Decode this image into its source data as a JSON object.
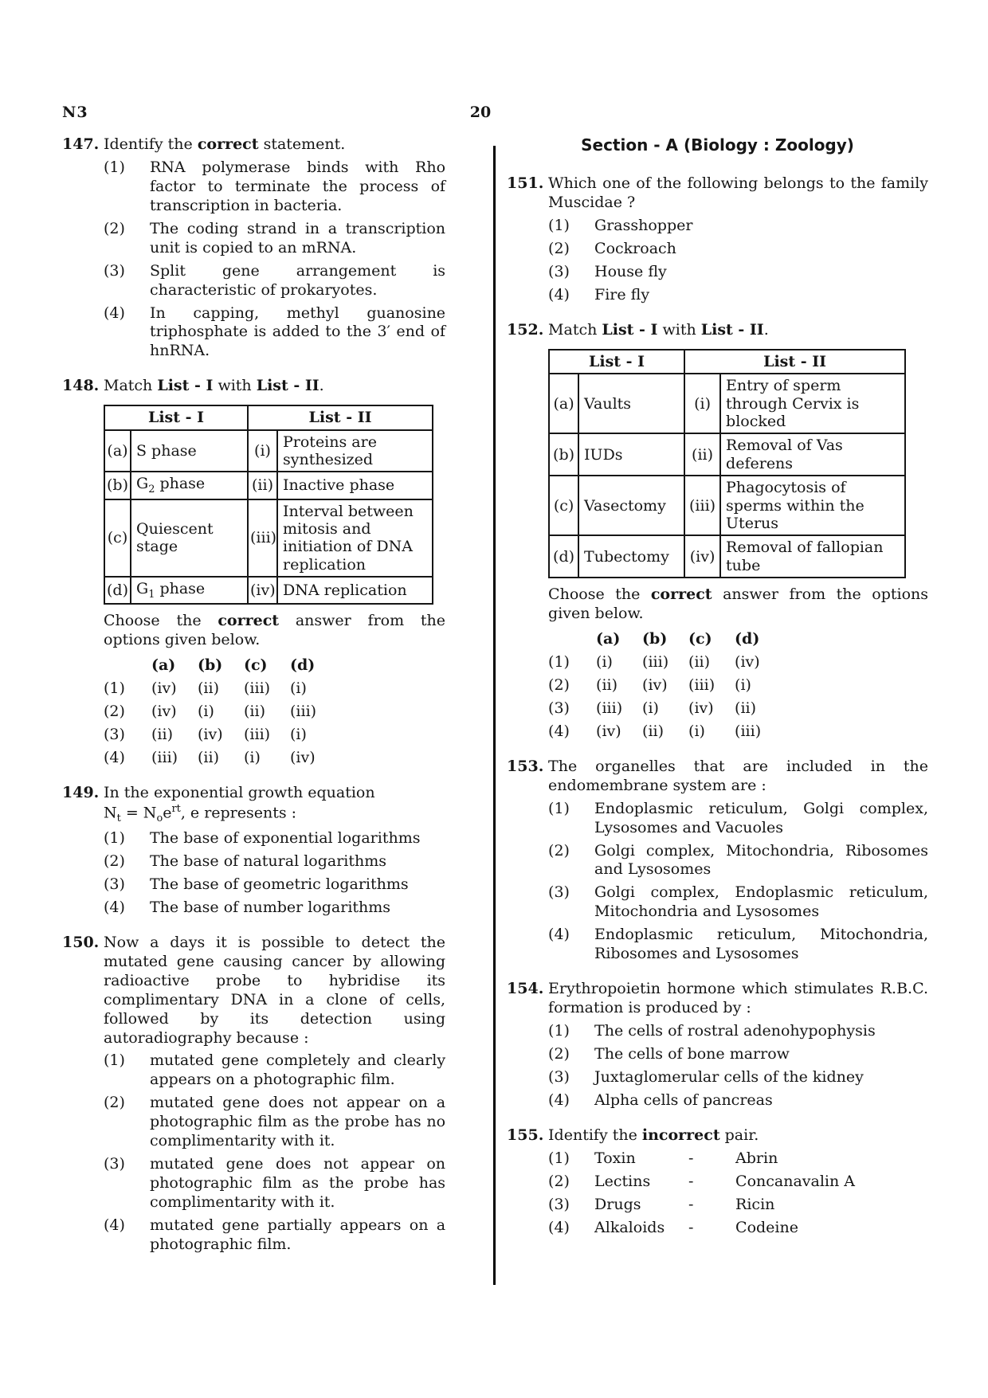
{
  "page": {
    "code": "N3",
    "number": "20"
  },
  "columns": {
    "left": {
      "questions": [
        {
          "id": "147",
          "number": "147.",
          "stem_lines": [
            [
              {
                "t": "Identify the "
              },
              {
                "t": "correct",
                "b": true
              },
              {
                "t": " statement."
              }
            ]
          ],
          "options": [
            {
              "label": "(1)",
              "text": [
                {
                  "t": "RNA polymerase binds with Rho factor to terminate the process of transcription in bacteria."
                }
              ]
            },
            {
              "label": "(2)",
              "text": [
                {
                  "t": "The coding strand in a transcription unit is copied to an mRNA."
                }
              ]
            },
            {
              "label": "(3)",
              "text": [
                {
                  "t": "Split gene arrangement is characteristic of prokaryotes."
                }
              ]
            },
            {
              "label": "(4)",
              "text": [
                {
                  "t": "In capping, methyl guanosine triphosphate is added to the 3′ end of hnRNA."
                }
              ]
            }
          ]
        },
        {
          "id": "148",
          "number": "148.",
          "stem_lines": [
            [
              {
                "t": "Match "
              },
              {
                "t": "List - I",
                "b": true
              },
              {
                "t": " with "
              },
              {
                "t": "List - II",
                "b": true
              },
              {
                "t": "."
              }
            ]
          ],
          "match_table": {
            "header_left": "List - I",
            "header_right": "List - II",
            "rows": [
              {
                "l_label": "(a)",
                "l": [
                  {
                    "t": "S phase"
                  }
                ],
                "r_label": "(i)",
                "r": [
                  {
                    "t": "Proteins are synthesized"
                  }
                ]
              },
              {
                "l_label": "(b)",
                "l": [
                  {
                    "t": "G"
                  },
                  {
                    "t": "2",
                    "sub": true
                  },
                  {
                    "t": " phase"
                  }
                ],
                "r_label": "(ii)",
                "r": [
                  {
                    "t": "Inactive phase"
                  }
                ]
              },
              {
                "l_label": "(c)",
                "l": [
                  {
                    "t": "Quiescent stage"
                  }
                ],
                "r_label": "(iii)",
                "r": [
                  {
                    "t": "Interval between mitosis and initiation of DNA replication"
                  }
                ]
              },
              {
                "l_label": "(d)",
                "l": [
                  {
                    "t": "G"
                  },
                  {
                    "t": "1",
                    "sub": true
                  },
                  {
                    "t": " phase"
                  }
                ],
                "r_label": "(iv)",
                "r": [
                  {
                    "t": "DNA replication"
                  }
                ]
              }
            ]
          },
          "choose": [
            {
              "t": "Choose the "
            },
            {
              "t": "correct",
              "b": true
            },
            {
              "t": " answer from the options given below."
            }
          ],
          "matrix": {
            "cols": [
              "(a)",
              "(b)",
              "(c)",
              "(d)"
            ],
            "rows": [
              {
                "label": "(1)",
                "cells": [
                  "(iv)",
                  "(ii)",
                  "(iii)",
                  "(i)"
                ]
              },
              {
                "label": "(2)",
                "cells": [
                  "(iv)",
                  "(i)",
                  "(ii)",
                  "(iii)"
                ]
              },
              {
                "label": "(3)",
                "cells": [
                  "(ii)",
                  "(iv)",
                  "(iii)",
                  "(i)"
                ]
              },
              {
                "label": "(4)",
                "cells": [
                  "(iii)",
                  "(ii)",
                  "(i)",
                  "(iv)"
                ]
              }
            ]
          }
        },
        {
          "id": "149",
          "number": "149.",
          "stem_lines": [
            [
              {
                "t": "In the exponential growth equation"
              }
            ],
            [
              {
                "t": "N"
              },
              {
                "t": "t",
                "sub": true
              },
              {
                "t": " = N"
              },
              {
                "t": "o",
                "sub": true
              },
              {
                "t": "e"
              },
              {
                "t": "rt",
                "sup": true
              },
              {
                "t": ", e represents :"
              }
            ]
          ],
          "options": [
            {
              "label": "(1)",
              "text": [
                {
                  "t": "The base of exponential logarithms"
                }
              ]
            },
            {
              "label": "(2)",
              "text": [
                {
                  "t": "The base of natural logarithms"
                }
              ]
            },
            {
              "label": "(3)",
              "text": [
                {
                  "t": "The base of geometric logarithms"
                }
              ]
            },
            {
              "label": "(4)",
              "text": [
                {
                  "t": "The base of number logarithms"
                }
              ]
            }
          ]
        },
        {
          "id": "150",
          "number": "150.",
          "stem_lines": [
            [
              {
                "t": "Now a days it is possible to detect the mutated gene causing cancer by allowing radioactive probe to hybridise its complimentary DNA in a clone of cells, followed by its detection using autoradiography because :"
              }
            ]
          ],
          "options": [
            {
              "label": "(1)",
              "text": [
                {
                  "t": "mutated gene completely and clearly appears on a photographic film."
                }
              ]
            },
            {
              "label": "(2)",
              "text": [
                {
                  "t": "mutated gene does not appear on a photographic film as the probe has no complimentarity with it."
                }
              ]
            },
            {
              "label": "(3)",
              "text": [
                {
                  "t": "mutated gene does not appear on photographic film as the probe has complimentarity with it."
                }
              ]
            },
            {
              "label": "(4)",
              "text": [
                {
                  "t": "mutated gene partially appears on a photographic film."
                }
              ]
            }
          ]
        }
      ]
    },
    "right": {
      "section_title": "Section - A (Biology : Zoology)",
      "questions": [
        {
          "id": "151",
          "number": "151.",
          "stem_lines": [
            [
              {
                "t": "Which one of the following belongs to the family Muscidae ?"
              }
            ]
          ],
          "options": [
            {
              "label": "(1)",
              "text": [
                {
                  "t": "Grasshopper"
                }
              ]
            },
            {
              "label": "(2)",
              "text": [
                {
                  "t": "Cockroach"
                }
              ]
            },
            {
              "label": "(3)",
              "text": [
                {
                  "t": "House fly"
                }
              ]
            },
            {
              "label": "(4)",
              "text": [
                {
                  "t": "Fire fly"
                }
              ]
            }
          ]
        },
        {
          "id": "152",
          "number": "152.",
          "stem_lines": [
            [
              {
                "t": "Match "
              },
              {
                "t": "List - I",
                "b": true
              },
              {
                "t": " with "
              },
              {
                "t": "List - II",
                "b": true
              },
              {
                "t": "."
              }
            ]
          ],
          "match_table": {
            "header_left": "List - I",
            "header_right": "List - II",
            "rows": [
              {
                "l_label": "(a)",
                "l": [
                  {
                    "t": "Vaults"
                  }
                ],
                "r_label": "(i)",
                "r": [
                  {
                    "t": "Entry of sperm through Cervix is blocked"
                  }
                ]
              },
              {
                "l_label": "(b)",
                "l": [
                  {
                    "t": "IUDs"
                  }
                ],
                "r_label": "(ii)",
                "r": [
                  {
                    "t": "Removal of Vas deferens"
                  }
                ]
              },
              {
                "l_label": "(c)",
                "l": [
                  {
                    "t": "Vasectomy"
                  }
                ],
                "r_label": "(iii)",
                "r": [
                  {
                    "t": "Phagocytosis of sperms within the Uterus"
                  }
                ]
              },
              {
                "l_label": "(d)",
                "l": [
                  {
                    "t": "Tubectomy"
                  }
                ],
                "r_label": "(iv)",
                "r": [
                  {
                    "t": "Removal of fallopian tube"
                  }
                ]
              }
            ]
          },
          "choose": [
            {
              "t": "Choose the "
            },
            {
              "t": "correct",
              "b": true
            },
            {
              "t": " answer from the options given below."
            }
          ],
          "matrix": {
            "cols": [
              "(a)",
              "(b)",
              "(c)",
              "(d)"
            ],
            "rows": [
              {
                "label": "(1)",
                "cells": [
                  "(i)",
                  "(iii)",
                  "(ii)",
                  "(iv)"
                ]
              },
              {
                "label": "(2)",
                "cells": [
                  "(ii)",
                  "(iv)",
                  "(iii)",
                  "(i)"
                ]
              },
              {
                "label": "(3)",
                "cells": [
                  "(iii)",
                  "(i)",
                  "(iv)",
                  "(ii)"
                ]
              },
              {
                "label": "(4)",
                "cells": [
                  "(iv)",
                  "(ii)",
                  "(i)",
                  "(iii)"
                ]
              }
            ]
          }
        },
        {
          "id": "153",
          "number": "153.",
          "stem_lines": [
            [
              {
                "t": "The organelles that are included in the endomembrane system are :"
              }
            ]
          ],
          "options": [
            {
              "label": "(1)",
              "text": [
                {
                  "t": "Endoplasmic reticulum, Golgi complex, Lysosomes and Vacuoles"
                }
              ]
            },
            {
              "label": "(2)",
              "text": [
                {
                  "t": "Golgi complex, Mitochondria, Ribosomes and Lysosomes"
                }
              ]
            },
            {
              "label": "(3)",
              "text": [
                {
                  "t": "Golgi complex, Endoplasmic reticulum, Mitochondria and Lysosomes"
                }
              ]
            },
            {
              "label": "(4)",
              "text": [
                {
                  "t": "Endoplasmic reticulum, Mitochondria, Ribosomes and Lysosomes"
                }
              ]
            }
          ]
        },
        {
          "id": "154",
          "number": "154.",
          "stem_lines": [
            [
              {
                "t": "Erythropoietin hormone which stimulates R.B.C. formation is produced by :"
              }
            ]
          ],
          "options": [
            {
              "label": "(1)",
              "text": [
                {
                  "t": "The cells of rostral adenohypophysis"
                }
              ]
            },
            {
              "label": "(2)",
              "text": [
                {
                  "t": "The cells of bone marrow"
                }
              ]
            },
            {
              "label": "(3)",
              "text": [
                {
                  "t": "Juxtaglomerular cells of the kidney"
                }
              ]
            },
            {
              "label": "(4)",
              "text": [
                {
                  "t": "Alpha cells of pancreas"
                }
              ]
            }
          ]
        },
        {
          "id": "155",
          "number": "155.",
          "stem_lines": [
            [
              {
                "t": "Identify the "
              },
              {
                "t": "incorrect",
                "b": true
              },
              {
                "t": " pair."
              }
            ]
          ],
          "options": [
            {
              "label": "(1)",
              "cols": [
                "Toxin",
                "-",
                "Abrin"
              ]
            },
            {
              "label": "(2)",
              "cols": [
                "Lectins",
                "-",
                "Concanavalin A"
              ]
            },
            {
              "label": "(3)",
              "cols": [
                "Drugs",
                "-",
                "Ricin"
              ]
            },
            {
              "label": "(4)",
              "cols": [
                "Alkaloids",
                "-",
                "Codeine"
              ]
            }
          ]
        }
      ]
    }
  }
}
